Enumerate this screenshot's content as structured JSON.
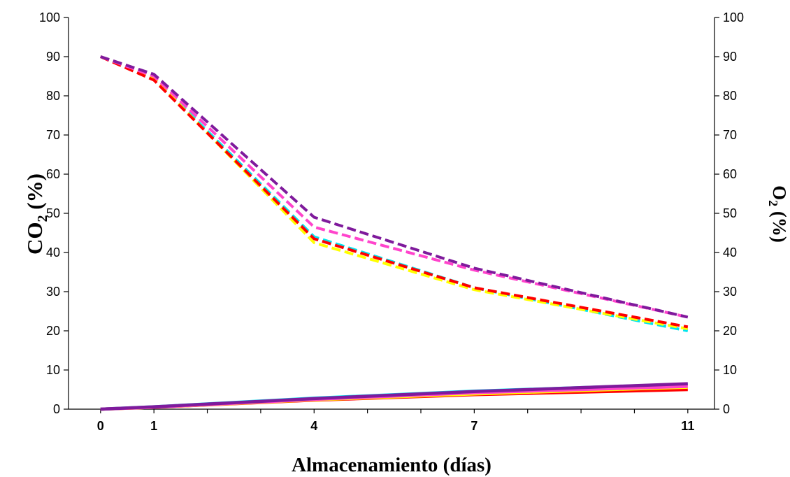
{
  "chart_data": {
    "type": "line",
    "title": "",
    "xlabel": "Almacenamiento (días)",
    "ylabel_left": "CO₂ (%)",
    "ylabel_left_main": "CO",
    "ylabel_left_sub": "2",
    "ylabel_left_rest": " (%)",
    "ylabel_right": "O₂ (%)",
    "ylabel_right_main": "O",
    "ylabel_right_sub": "2",
    "ylabel_right_rest": " (%)",
    "xlim": [
      -0.6,
      11.5
    ],
    "ylim_left": [
      0,
      100
    ],
    "ylim_right": [
      0,
      100
    ],
    "x_tick_labels": [
      "0",
      "1",
      "4",
      "7",
      "11"
    ],
    "x_ticks": [
      0,
      1,
      4,
      7,
      11
    ],
    "x_minor_ticks": [
      2,
      3,
      5,
      6,
      8,
      9,
      10
    ],
    "y_ticks": [
      0,
      10,
      20,
      30,
      40,
      50,
      60,
      70,
      80,
      90,
      100
    ],
    "grid": false,
    "legend": "none",
    "series": [
      {
        "color": "#00e5ee",
        "style": "dashed",
        "axis": "right",
        "x": [
          0,
          1,
          4,
          7,
          11
        ],
        "y": [
          90,
          84.5,
          44,
          31,
          20
        ]
      },
      {
        "color": "#ffff00",
        "style": "dashed",
        "axis": "right",
        "x": [
          0,
          1,
          4,
          7,
          11
        ],
        "y": [
          90,
          84.5,
          42.5,
          30.5,
          20.5
        ]
      },
      {
        "color": "#ff0000",
        "style": "dashed",
        "axis": "right",
        "x": [
          0,
          1,
          4,
          7,
          11
        ],
        "y": [
          90,
          84,
          43.5,
          31,
          21
        ]
      },
      {
        "color": "#ff44cc",
        "style": "dashed",
        "axis": "right",
        "x": [
          0,
          1,
          4,
          7,
          11
        ],
        "y": [
          90,
          85,
          46.5,
          35.5,
          23.5
        ]
      },
      {
        "color": "#7f1a9c",
        "style": "dashed",
        "axis": "right",
        "x": [
          0,
          1,
          4,
          7,
          11
        ],
        "y": [
          90,
          85.5,
          49,
          36,
          23.5
        ]
      },
      {
        "color": "#ff0000",
        "style": "solid",
        "axis": "left",
        "x": [
          0,
          1,
          4,
          7,
          11
        ],
        "y": [
          0,
          0.5,
          2.3,
          3.7,
          5
        ]
      },
      {
        "color": "#ffff00",
        "style": "solid",
        "axis": "left",
        "x": [
          0,
          1,
          4,
          7,
          11
        ],
        "y": [
          0,
          0.5,
          2.4,
          3.9,
          5.6
        ]
      },
      {
        "color": "#00e5ee",
        "style": "solid",
        "axis": "left",
        "x": [
          0,
          1,
          4,
          7,
          11
        ],
        "y": [
          0,
          0.6,
          2.8,
          4.6,
          6.4
        ]
      },
      {
        "color": "#ff44cc",
        "style": "solid",
        "axis": "left",
        "x": [
          0,
          1,
          4,
          7,
          11
        ],
        "y": [
          0,
          0.5,
          2.5,
          4.2,
          5.8
        ]
      },
      {
        "color": "#7f1a9c",
        "style": "solid",
        "axis": "left",
        "x": [
          0,
          1,
          4,
          7,
          11
        ],
        "y": [
          0,
          0.6,
          2.7,
          4.5,
          6.5
        ]
      }
    ]
  }
}
